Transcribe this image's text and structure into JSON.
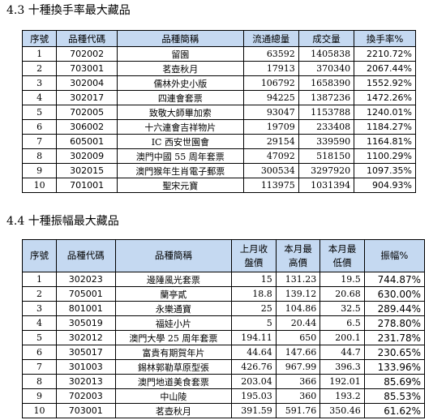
{
  "section1": {
    "title": "4.3 十種換手率最大藏品",
    "headers": [
      "序號",
      "品種代碼",
      "品種簡稱",
      "流通總量",
      "成交量",
      "換手率%"
    ],
    "rows": [
      [
        "1",
        "702002",
        "留園",
        "63592",
        "1405838",
        "2210.72%"
      ],
      [
        "2",
        "703001",
        "茗壺秋月",
        "17913",
        "370340",
        "2067.44%"
      ],
      [
        "3",
        "302004",
        "儒林外史小版",
        "106792",
        "1658390",
        "1552.92%"
      ],
      [
        "4",
        "302017",
        "四連會套票",
        "94225",
        "1387236",
        "1472.26%"
      ],
      [
        "5",
        "702005",
        "致敬大師畢加索",
        "93047",
        "1153788",
        "1240.01%"
      ],
      [
        "6",
        "306002",
        "十六連會吉祥物片",
        "19709",
        "233408",
        "1184.27%"
      ],
      [
        "7",
        "605001",
        "IC 西安世園會",
        "29154",
        "339590",
        "1164.81%"
      ],
      [
        "8",
        "302009",
        "澳門中國 55 周年套票",
        "47092",
        "518150",
        "1100.29%"
      ],
      [
        "9",
        "302015",
        "澳門猴年生肖電子郵票",
        "300534",
        "3297920",
        "1097.35%"
      ],
      [
        "10",
        "701001",
        "聖宋元寶",
        "113975",
        "1031394",
        "904.93%"
      ]
    ]
  },
  "section2": {
    "title": "4.4 十種振幅最大藏品",
    "headers": [
      [
        "序號"
      ],
      [
        "品種代碼"
      ],
      [
        "品種簡稱"
      ],
      [
        "上月收",
        "盤價"
      ],
      [
        "本月最",
        "高價"
      ],
      [
        "本月最",
        "低價"
      ],
      [
        "振幅%"
      ]
    ],
    "rows": [
      [
        "1",
        "302023",
        "邊陲風光套票",
        "15",
        "131.23",
        "19.5",
        "744.87%"
      ],
      [
        "2",
        "705001",
        "蘭亭貳",
        "18.8",
        "139.12",
        "20.68",
        "630.00%"
      ],
      [
        "3",
        "801001",
        "永樂通寶",
        "25",
        "104.86",
        "32.5",
        "289.44%"
      ],
      [
        "4",
        "305019",
        "福娃小片",
        "5",
        "20.44",
        "6.5",
        "278.80%"
      ],
      [
        "5",
        "302012",
        "澳門大學 25 周年套票",
        "194.11",
        "650",
        "200.1",
        "231.78%"
      ],
      [
        "6",
        "305017",
        "富貴有期賀年片",
        "44.64",
        "147.66",
        "44.7",
        "230.65%"
      ],
      [
        "7",
        "301003",
        "錫林郭勒草原型張",
        "426.76",
        "967.99",
        "396.3",
        "133.96%"
      ],
      [
        "8",
        "302013",
        "澳門地道美食套票",
        "203.04",
        "366",
        "192.01",
        "85.69%"
      ],
      [
        "9",
        "702003",
        "中山陵",
        "195.03",
        "360",
        "193.2",
        "85.53%"
      ],
      [
        "10",
        "703001",
        "茗壺秋月",
        "391.59",
        "591.76",
        "350.46",
        "61.62%"
      ]
    ]
  }
}
